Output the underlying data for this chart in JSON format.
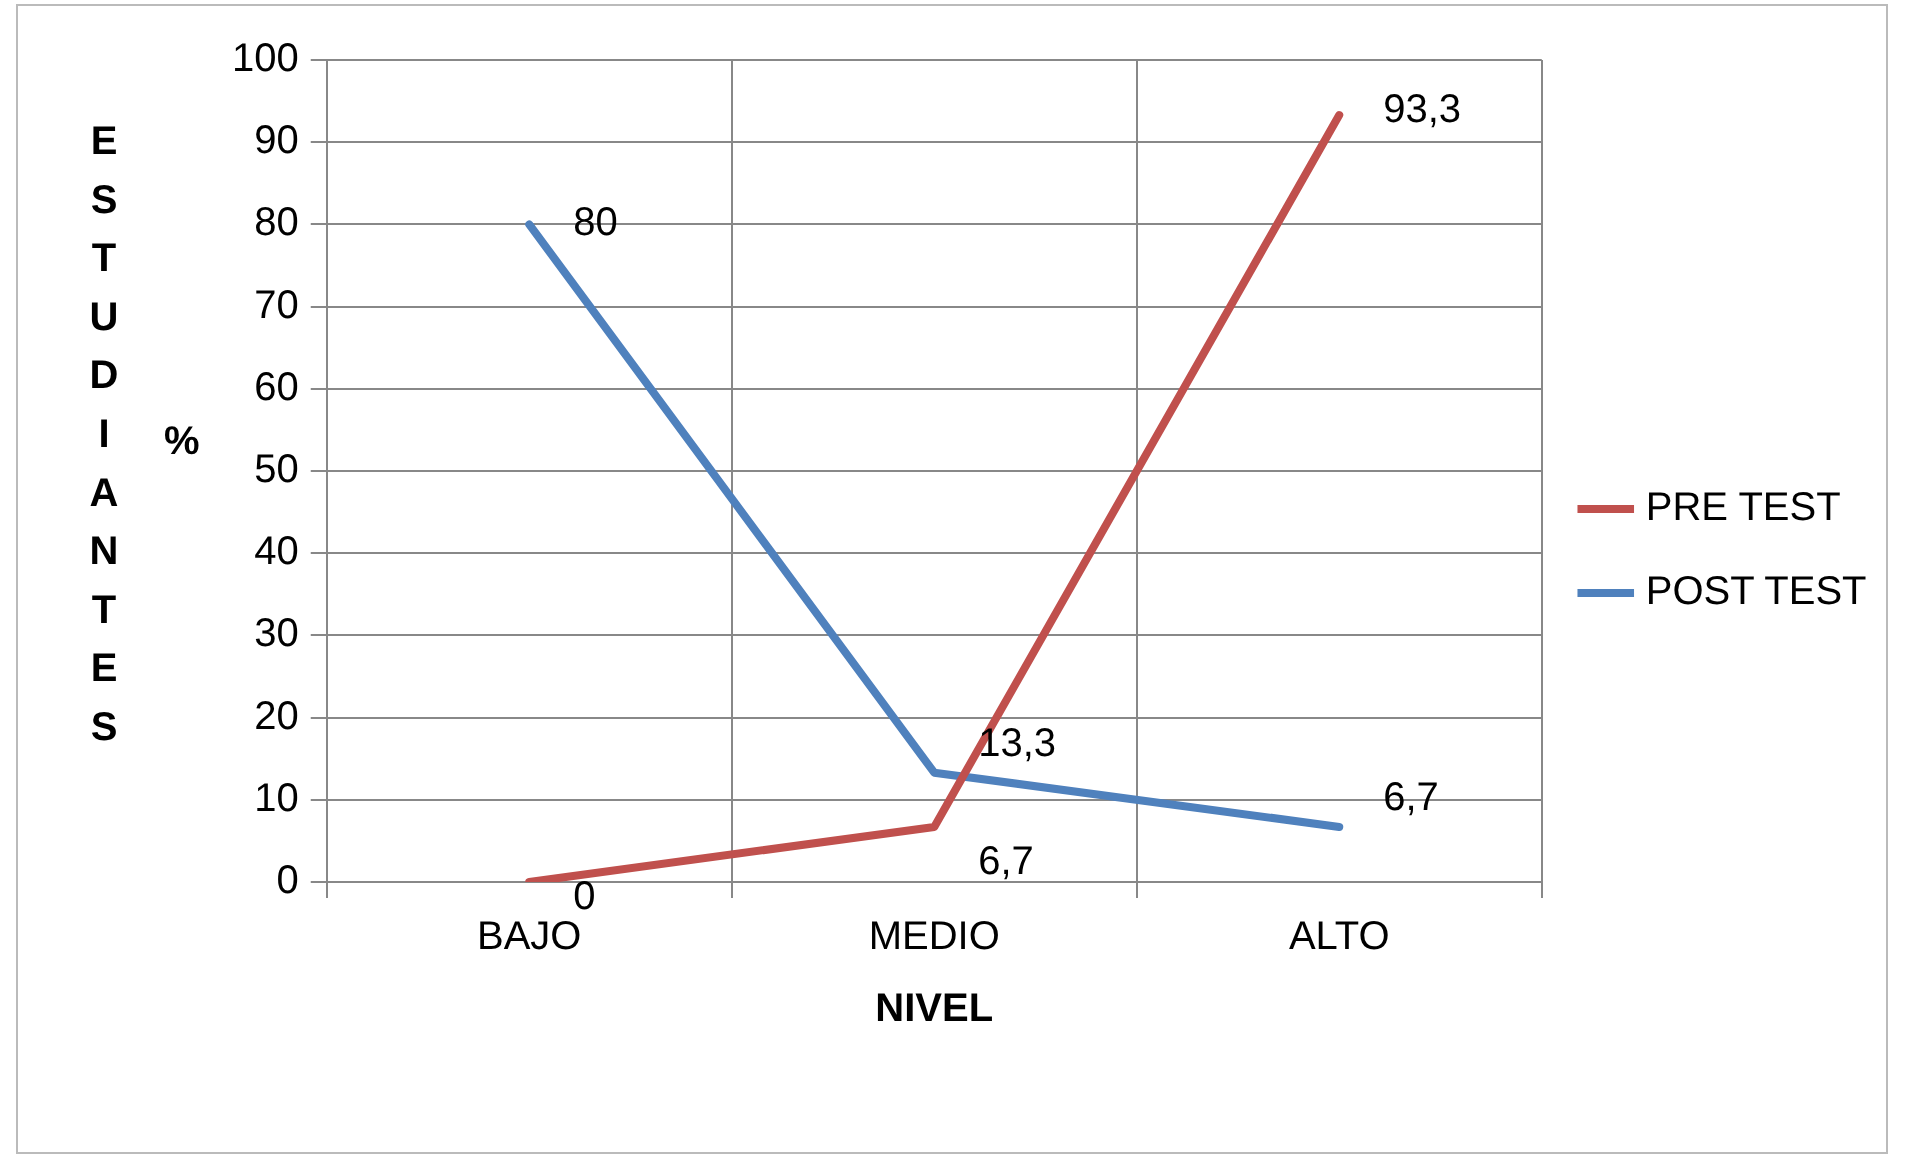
{
  "chart_data": {
    "type": "line",
    "xlabel": "NIVEL",
    "ylabel": "ESTUDIANTES",
    "annotations": [
      "%"
    ],
    "categories": [
      "BAJO",
      "MEDIO",
      "ALTO"
    ],
    "series": [
      {
        "name": "PRE TEST",
        "color": "#c0504d",
        "values": [
          0,
          6.7,
          93.3
        ],
        "value_labels": [
          "0",
          "6,7",
          "93,3"
        ]
      },
      {
        "name": "POST TEST",
        "color": "#4f81bd",
        "values": [
          80,
          13.3,
          6.7
        ],
        "value_labels": [
          "80",
          "13,3",
          "6,7"
        ]
      }
    ],
    "ylim": [
      0,
      100
    ],
    "yticks": [
      0,
      10,
      20,
      30,
      40,
      50,
      60,
      70,
      80,
      90,
      100
    ],
    "grid": true,
    "legend": "right",
    "marker": "none"
  }
}
